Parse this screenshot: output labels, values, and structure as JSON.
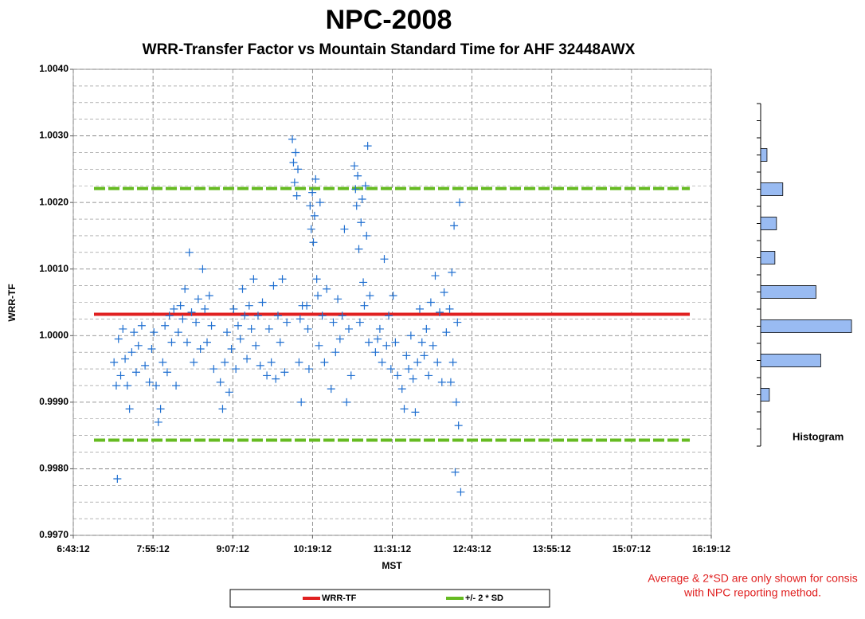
{
  "chart_data": [
    {
      "type": "scatter",
      "title": "NPC-2008",
      "subtitle": "WRR-Transfer Factor vs Mountain Standard Time for AHF 32448AWX",
      "x_label": "MST",
      "y_label": "WRR-TF",
      "xlim": [
        403.2,
        979.2
      ],
      "xticks": [
        {
          "value": 403.2,
          "label": "6:43:12"
        },
        {
          "value": 475.2,
          "label": "7:55:12"
        },
        {
          "value": 547.2,
          "label": "9:07:12"
        },
        {
          "value": 619.2,
          "label": "10:19:12"
        },
        {
          "value": 691.2,
          "label": "11:31:12"
        },
        {
          "value": 763.2,
          "label": "12:43:12"
        },
        {
          "value": 835.2,
          "label": "13:55:12"
        },
        {
          "value": 907.2,
          "label": "15:07:12"
        },
        {
          "value": 979.2,
          "label": "16:19:12"
        }
      ],
      "ylim": [
        0.997,
        1.004
      ],
      "yticks": [
        {
          "value": 0.997,
          "label": "0.9970"
        },
        {
          "value": 0.998,
          "label": "0.9980"
        },
        {
          "value": 0.999,
          "label": "0.9990"
        },
        {
          "value": 1.0,
          "label": "1.0000"
        },
        {
          "value": 1.001,
          "label": "1.0010"
        },
        {
          "value": 1.002,
          "label": "1.0020"
        },
        {
          "value": 1.003,
          "label": "1.0030"
        },
        {
          "value": 1.004,
          "label": "1.0040"
        }
      ],
      "grid": true,
      "color": "#1f6fd0",
      "x": [
        443,
        440,
        442,
        444,
        446,
        448,
        450,
        452,
        454,
        456,
        458,
        460,
        462,
        465,
        468,
        472,
        474,
        476,
        478,
        480,
        482,
        484,
        486,
        488,
        490,
        492,
        494,
        496,
        498,
        500,
        502,
        504,
        506,
        508,
        510,
        512,
        514,
        516,
        518,
        520,
        522,
        524,
        526,
        528,
        530,
        536,
        538,
        540,
        542,
        544,
        546,
        548,
        550,
        552,
        554,
        556,
        558,
        560,
        562,
        564,
        566,
        568,
        570,
        572,
        574,
        578,
        580,
        582,
        584,
        586,
        588,
        590,
        592,
        594,
        596,
        601,
        602,
        603,
        604,
        605,
        606,
        607,
        608,
        609,
        610,
        614,
        615,
        616,
        617,
        618,
        619,
        620,
        621,
        622,
        623,
        624,
        625,
        626,
        628,
        630,
        632,
        636,
        638,
        640,
        642,
        644,
        646,
        648,
        650,
        652,
        654,
        657,
        658,
        659,
        660,
        661,
        662,
        663,
        664,
        665,
        666,
        667,
        668,
        669,
        670,
        671,
        676,
        678,
        680,
        682,
        684,
        686,
        688,
        690,
        692,
        694,
        696,
        700,
        702,
        704,
        706,
        708,
        710,
        712,
        714,
        716,
        718,
        720,
        722,
        724,
        726,
        728,
        730,
        732,
        734,
        736,
        738,
        740,
        743,
        744,
        745,
        746,
        747,
        748,
        749,
        750,
        751,
        752,
        753
      ],
      "values": [
        0.99785,
        0.9996,
        0.99925,
        0.99995,
        0.9994,
        1.0001,
        0.99965,
        0.99925,
        0.9989,
        0.99975,
        1.00005,
        0.99945,
        0.99985,
        1.00015,
        0.99955,
        0.9993,
        0.9998,
        1.00005,
        0.99925,
        0.9987,
        0.9989,
        0.9996,
        1.00015,
        0.99945,
        1.0003,
        0.9999,
        1.0004,
        0.99925,
        1.00005,
        1.00045,
        1.00025,
        1.0007,
        0.9999,
        1.00125,
        1.00035,
        0.9996,
        1.0002,
        1.00055,
        0.9998,
        1.001,
        1.0004,
        0.9999,
        1.0006,
        1.00015,
        0.9995,
        0.9993,
        0.9989,
        0.9996,
        1.00005,
        0.99915,
        0.9998,
        1.0004,
        0.9995,
        1.00015,
        0.99995,
        1.0007,
        1.0003,
        0.99965,
        1.00045,
        1.0001,
        1.00085,
        0.99985,
        1.0003,
        0.99955,
        1.0005,
        0.9994,
        1.0001,
        0.9996,
        1.00075,
        0.99935,
        1.0003,
        0.9999,
        1.00085,
        0.99945,
        1.0002,
        1.00295,
        1.0026,
        1.0023,
        1.00275,
        1.0021,
        1.0025,
        0.9996,
        1.00025,
        0.999,
        1.00045,
        1.00045,
        1.0001,
        0.9995,
        1.00195,
        1.0016,
        1.00215,
        1.0014,
        1.0018,
        1.00235,
        1.00085,
        1.0006,
        0.99985,
        1.002,
        1.0003,
        0.9996,
        1.0007,
        0.9992,
        1.0002,
        0.99975,
        1.00055,
        0.99995,
        1.0003,
        1.0016,
        0.999,
        1.0001,
        0.9994,
        1.00255,
        1.0022,
        1.00195,
        1.0024,
        1.0013,
        1.0002,
        1.0017,
        1.00205,
        1.0008,
        1.00045,
        1.00225,
        1.0015,
        1.00285,
        0.9999,
        1.0006,
        0.99975,
        0.99995,
        1.0001,
        0.9996,
        1.00115,
        0.99985,
        1.0003,
        0.9995,
        1.0006,
        0.9999,
        0.9994,
        0.9992,
        0.9989,
        0.9997,
        0.9995,
        1.0,
        0.99935,
        0.99885,
        0.9996,
        1.0004,
        0.9999,
        0.9997,
        1.0001,
        0.9994,
        1.0005,
        0.99985,
        1.0009,
        0.9996,
        1.00035,
        0.9993,
        1.00065,
        1.00005,
        1.0004,
        0.9993,
        1.00095,
        0.9996,
        1.00165,
        0.99795,
        0.999,
        1.0002,
        0.99865,
        1.002,
        0.99765
      ],
      "lines": [
        {
          "name": "WRR-TF",
          "color": "#e02020",
          "x": [
            421.9,
            959.8
          ],
          "values": [
            1.00032,
            1.00032
          ]
        },
        {
          "name": "+/- 2 * SD",
          "color": "#66bb22",
          "dashed": true,
          "x": [
            421.9,
            959.8
          ],
          "values": [
            1.00221,
            1.00221
          ]
        },
        {
          "color": "#66bb22",
          "dashed": true,
          "x": [
            421.9,
            959.8
          ],
          "values": [
            0.99843,
            0.99843
          ]
        }
      ],
      "notes": [
        "Average & 2*SD are only shown for consis",
        "with NPC reporting method."
      ],
      "note_color": "#e02020"
    },
    {
      "type": "hbar",
      "label": "Histogram",
      "color": "#99bbf2",
      "xlim": [
        0,
        125
      ],
      "values": [
        0,
        8,
        28,
        20,
        18,
        70,
        115,
        76,
        11,
        0
      ]
    }
  ]
}
